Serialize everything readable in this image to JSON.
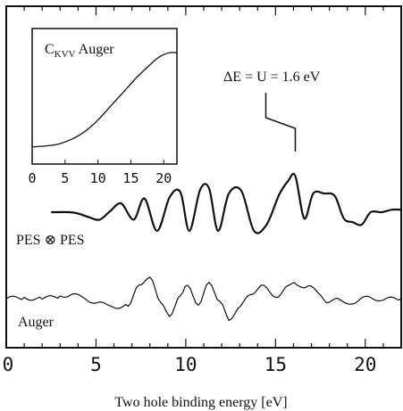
{
  "chart_data": {
    "type": "line",
    "xlabel": "Two hole binding energy [eV]",
    "xlim": [
      0,
      22
    ],
    "x_ticks": [
      "0",
      "5",
      "10",
      "15",
      "20"
    ],
    "x_tick_values": [
      0,
      5,
      10,
      15,
      20
    ],
    "grid": false,
    "annotation": "ΔE = U = 1.6 eV",
    "annotation_x": 16.1,
    "series": [
      {
        "name": "PES ⊗ PES",
        "x": [
          2.5,
          3.5,
          4.0,
          4.6,
          5.2,
          5.8,
          6.4,
          7.1,
          7.7,
          8.4,
          9.1,
          9.7,
          10.2,
          10.8,
          11.3,
          11.8,
          12.4,
          13.1,
          13.8,
          14.5,
          15.2,
          15.7,
          16.1,
          16.6,
          17.1,
          17.7,
          18.3,
          18.8,
          19.3,
          19.8,
          20.3,
          20.9,
          21.5,
          22.0
        ],
        "y": [
          0.0,
          0.0,
          -0.1,
          -0.4,
          -0.6,
          0.1,
          0.7,
          -0.6,
          1.1,
          -1.5,
          1.2,
          1.6,
          -1.5,
          1.8,
          1.9,
          -1.5,
          1.5,
          1.7,
          -1.5,
          -1.0,
          1.4,
          2.5,
          2.9,
          -0.5,
          1.5,
          1.5,
          1.3,
          -0.5,
          -0.8,
          -1.0,
          0.0,
          0.0,
          0.2,
          0.2
        ]
      },
      {
        "name": "Auger",
        "x": [
          0.0,
          1.0,
          2.0,
          3.0,
          3.6,
          4.2,
          5.0,
          5.8,
          6.8,
          7.4,
          8.0,
          8.6,
          9.1,
          9.7,
          10.1,
          10.7,
          11.3,
          11.9,
          12.4,
          12.9,
          13.6,
          14.2,
          15.0,
          15.7,
          16.2,
          16.8,
          17.4,
          18.0,
          18.6,
          19.4,
          20.2,
          21.0,
          22.0
        ],
        "y": [
          0.0,
          0.1,
          0.0,
          0.2,
          0.5,
          0.1,
          -0.3,
          -0.9,
          -0.6,
          1.2,
          2.4,
          -0.6,
          -1.6,
          0.1,
          1.6,
          -0.9,
          1.9,
          -0.5,
          -2.0,
          -1.2,
          0.6,
          1.2,
          0.3,
          1.2,
          1.5,
          1.2,
          0.6,
          -0.4,
          -0.1,
          -0.5,
          0.2,
          -0.1,
          0.0
        ]
      }
    ],
    "inset": {
      "type": "line",
      "title": "C",
      "title_sub": "KVV",
      "title_suffix": " Auger",
      "xlim": [
        0,
        22
      ],
      "x_ticks": [
        "0",
        "5",
        "10",
        "15",
        "20"
      ],
      "x_tick_values": [
        0,
        5,
        10,
        15,
        20
      ],
      "series": [
        {
          "name": "",
          "x": [
            0,
            2,
            4,
            6,
            8,
            10,
            12,
            14,
            16,
            18,
            19,
            20,
            21,
            22
          ],
          "y": [
            0.02,
            0.03,
            0.05,
            0.1,
            0.18,
            0.3,
            0.45,
            0.6,
            0.75,
            0.88,
            0.94,
            0.98,
            1.0,
            1.0
          ]
        }
      ]
    }
  }
}
